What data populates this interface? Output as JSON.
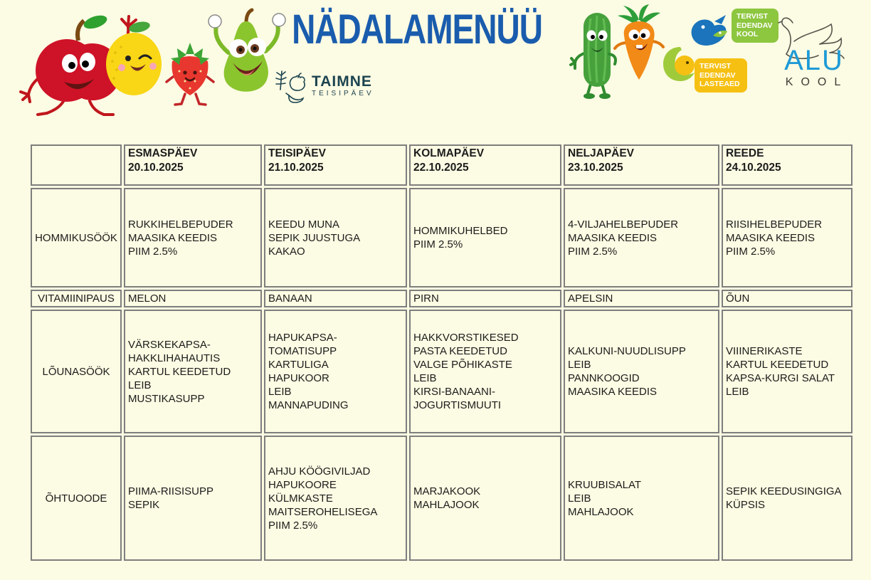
{
  "page": {
    "background_color": "#FCFBE3",
    "table_border_color": "#7E7E7E",
    "text_color": "#1C1C1C"
  },
  "header": {
    "title": "NÄDALAMENÜÜ",
    "title_color": "#1A5CAD",
    "taimne_logo": {
      "name": "TAIMNE",
      "subtitle": "TEISIPÄEV",
      "color": "#1C4450"
    },
    "badge_kool": {
      "lines": [
        "TERVIST",
        "EDENDAV",
        "KOOL"
      ],
      "background": "#8DC63F",
      "text_color": "#FFFFFF"
    },
    "badge_lasteaed": {
      "lines": [
        "TERVIST",
        "EDENDAV",
        "LASTEAED"
      ],
      "background": "#F6C013",
      "text_color": "#FFFFFF"
    },
    "alu_logo": {
      "name": "ALU",
      "subtitle": "KOOL",
      "name_color": "#1E9AD6",
      "subtitle_color": "#3C3C36"
    },
    "mascots": [
      "apple",
      "lemon",
      "strawberry",
      "pear",
      "cucumber",
      "carrot"
    ]
  },
  "menu_table": {
    "columns": [
      {
        "day": "ESMASPÄEV",
        "date": "20.10.2025"
      },
      {
        "day": "TEISIPÄEV",
        "date": "21.10.2025"
      },
      {
        "day": "KOLMAPÄEV",
        "date": "22.10.2025"
      },
      {
        "day": "NELJAPÄEV",
        "date": "23.10.2025"
      },
      {
        "day": "REEDE",
        "date": "24.10.2025"
      }
    ],
    "rows": [
      {
        "label": "HOMMIKUSÖÖK",
        "cells": [
          [
            "RUKKIHELBEPUDER",
            "MAASIKA KEEDIS",
            "PIIM 2.5%"
          ],
          [
            "KEEDU MUNA",
            "SEPIK JUUSTUGA",
            "KAKAO"
          ],
          [
            "HOMMIKUHELBED",
            "PIIM 2.5%"
          ],
          [
            "4-VILJAHELBEPUDER",
            "MAASIKA KEEDIS",
            "PIIM 2.5%"
          ],
          [
            "RIISIHELBEPUDER",
            "MAASIKA KEEDIS",
            "PIIM 2.5%"
          ]
        ]
      },
      {
        "label": "VITAMIINIPAUS",
        "cells": [
          [
            "MELON"
          ],
          [
            "BANAAN"
          ],
          [
            "PIRN"
          ],
          [
            "APELSIN"
          ],
          [
            "ÕUN"
          ]
        ]
      },
      {
        "label": "LÕUNASÖÖK",
        "cells": [
          [
            "VÄRSKEKAPSA-",
            "HAKKLIHAHAUTIS",
            "KARTUL KEEDETUD",
            "LEIB",
            "MUSTIKASUPP"
          ],
          [
            "HAPUKAPSA-",
            "TOMATISUPP",
            "KARTULIGA",
            "HAPUKOOR",
            "LEIB",
            "MANNAPUDING"
          ],
          [
            "HAKKVORSTIKESED",
            "PASTA KEEDETUD",
            "VALGE PÕHIKASTE",
            "LEIB",
            "KIRSI-BANAANI-",
            "JOGURTISMUUTI"
          ],
          [
            "KALKUNI-NUUDLISUPP",
            "LEIB",
            "PANNKOOGID",
            "MAASIKA KEEDIS"
          ],
          [
            "VIIINERIKASTE",
            "KARTUL KEEDETUD",
            "KAPSA-KURGI SALAT",
            "LEIB"
          ]
        ]
      },
      {
        "label": "ÕHTUOODE",
        "cells": [
          [
            "PIIMA-RIISISUPP",
            "SEPIK"
          ],
          [
            "AHJU KÖÖGIVILJAD",
            "HAPUKOORE",
            "KÜLMKASTE",
            "MAITSEROHELISEGA",
            "PIIM 2.5%"
          ],
          [
            "MARJAKOOK",
            "MAHLAJOOK"
          ],
          [
            "KRUUBISALAT",
            "LEIB",
            "MAHLAJOOK"
          ],
          [
            "SEPIK KEEDUSINGIGA",
            "KÜPSIS"
          ]
        ]
      }
    ]
  }
}
